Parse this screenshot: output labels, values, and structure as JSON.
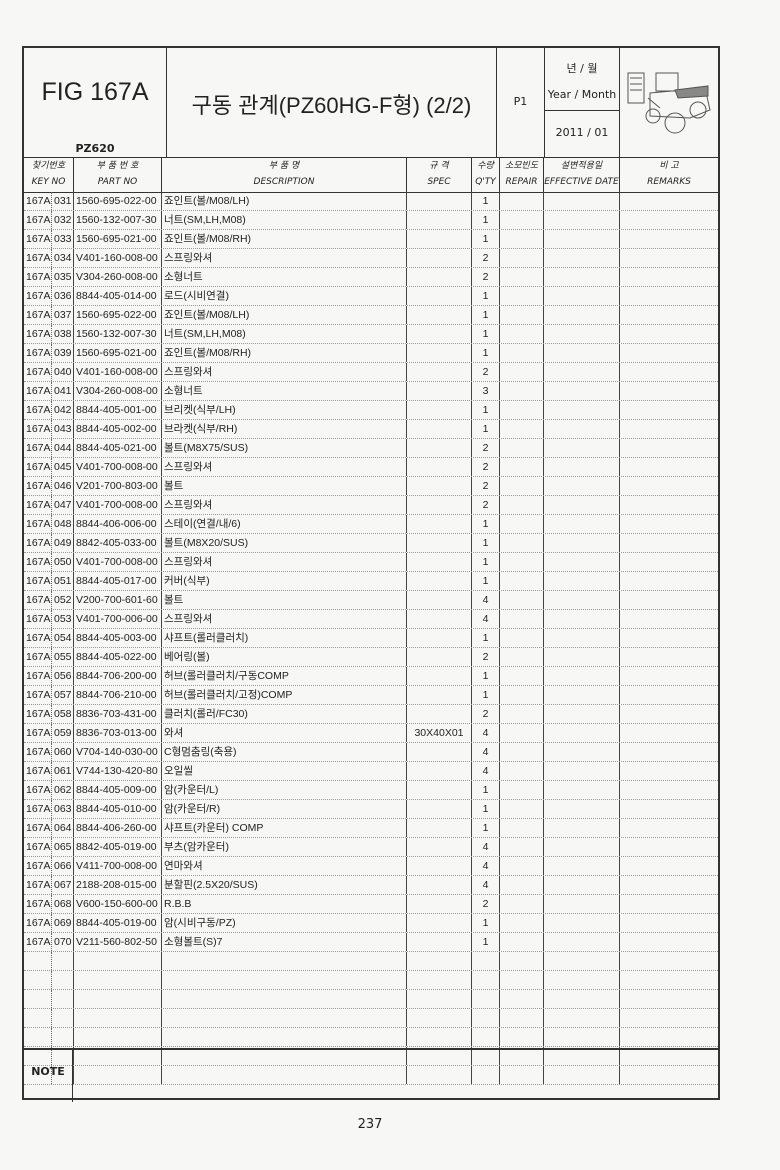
{
  "header": {
    "fig": "FIG 167A",
    "model": "PZ620",
    "title": "구동 관계(PZ60HG-F형) (2/2)",
    "page_code": "P1",
    "year_month_ko": "년 / 월",
    "year_month_en": "Year / Month",
    "date": "2011 / 01",
    "illustration": "rice-transplanter-illustration"
  },
  "columns": [
    {
      "ko": "찾기번호",
      "en": "KEY NO"
    },
    {
      "ko": "부 품 번 호",
      "en": "PART NO"
    },
    {
      "ko": "부 품 명",
      "en": "DESCRIPTION"
    },
    {
      "ko": "규 격",
      "en": "SPEC"
    },
    {
      "ko": "수량",
      "en": "Q'TY"
    },
    {
      "ko": "소모빈도",
      "en": "REPAIR"
    },
    {
      "ko": "설변적용일",
      "en": "EFFECTIVE DATE"
    },
    {
      "ko": "비 고",
      "en": "REMARKS"
    }
  ],
  "rows": [
    [
      "167A",
      "031",
      "1560-695-022-00",
      "죠인트(볼/M08/LH)",
      "",
      "1"
    ],
    [
      "167A",
      "032",
      "1560-132-007-30",
      "너트(SM,LH,M08)",
      "",
      "1"
    ],
    [
      "167A",
      "033",
      "1560-695-021-00",
      "죠인트(볼/M08/RH)",
      "",
      "1"
    ],
    [
      "167A",
      "034",
      "V401-160-008-00",
      "스프링와셔",
      "",
      "2"
    ],
    [
      "167A",
      "035",
      "V304-260-008-00",
      "소형너트",
      "",
      "2"
    ],
    [
      "167A",
      "036",
      "8844-405-014-00",
      "로드(시비연결)",
      "",
      "1"
    ],
    [
      "167A",
      "037",
      "1560-695-022-00",
      "죠인트(볼/M08/LH)",
      "",
      "1"
    ],
    [
      "167A",
      "038",
      "1560-132-007-30",
      "너트(SM,LH,M08)",
      "",
      "1"
    ],
    [
      "167A",
      "039",
      "1560-695-021-00",
      "죠인트(볼/M08/RH)",
      "",
      "1"
    ],
    [
      "167A",
      "040",
      "V401-160-008-00",
      "스프링와셔",
      "",
      "2"
    ],
    [
      "167A",
      "041",
      "V304-260-008-00",
      "소형너트",
      "",
      "3"
    ],
    [
      "167A",
      "042",
      "8844-405-001-00",
      "브리켓(식부/LH)",
      "",
      "1"
    ],
    [
      "167A",
      "043",
      "8844-405-002-00",
      "브라켓(식부/RH)",
      "",
      "1"
    ],
    [
      "167A",
      "044",
      "8844-405-021-00",
      "볼트(M8X75/SUS)",
      "",
      "2"
    ],
    [
      "167A",
      "045",
      "V401-700-008-00",
      "스프링와셔",
      "",
      "2"
    ],
    [
      "167A",
      "046",
      "V201-700-803-00",
      "볼트",
      "",
      "2"
    ],
    [
      "167A",
      "047",
      "V401-700-008-00",
      "스프링와셔",
      "",
      "2"
    ],
    [
      "167A",
      "048",
      "8844-406-006-00",
      "스테이(연결/내/6)",
      "",
      "1"
    ],
    [
      "167A",
      "049",
      "8842-405-033-00",
      "볼트(M8X20/SUS)",
      "",
      "1"
    ],
    [
      "167A",
      "050",
      "V401-700-008-00",
      "스프링와셔",
      "",
      "1"
    ],
    [
      "167A",
      "051",
      "8844-405-017-00",
      "커버(식부)",
      "",
      "1"
    ],
    [
      "167A",
      "052",
      "V200-700-601-60",
      "볼트",
      "",
      "4"
    ],
    [
      "167A",
      "053",
      "V401-700-006-00",
      "스프링와셔",
      "",
      "4"
    ],
    [
      "167A",
      "054",
      "8844-405-003-00",
      "샤프트(롤러클러치)",
      "",
      "1"
    ],
    [
      "167A",
      "055",
      "8844-405-022-00",
      "베어링(볼)",
      "",
      "2"
    ],
    [
      "167A",
      "056",
      "8844-706-200-00",
      "허브(롤러클러치/구동COMP",
      "",
      "1"
    ],
    [
      "167A",
      "057",
      "8844-706-210-00",
      "허브(롤러클러치/고정)COMP",
      "",
      "1"
    ],
    [
      "167A",
      "058",
      "8836-703-431-00",
      "클러치(롤러/FC30)",
      "",
      "2"
    ],
    [
      "167A",
      "059",
      "8836-703-013-00",
      "와셔",
      "30X40X01",
      "4"
    ],
    [
      "167A",
      "060",
      "V704-140-030-00",
      "C형멈춤링(축용)",
      "",
      "4"
    ],
    [
      "167A",
      "061",
      "V744-130-420-80",
      "오일씰",
      "",
      "4"
    ],
    [
      "167A",
      "062",
      "8844-405-009-00",
      "암(카운터/L)",
      "",
      "1"
    ],
    [
      "167A",
      "063",
      "8844-405-010-00",
      "암(카운터/R)",
      "",
      "1"
    ],
    [
      "167A",
      "064",
      "8844-406-260-00",
      "샤프트(카운터) COMP",
      "",
      "1"
    ],
    [
      "167A",
      "065",
      "8842-405-019-00",
      "부츠(암카운터)",
      "",
      "4"
    ],
    [
      "167A",
      "066",
      "V411-700-008-00",
      "연마와셔",
      "",
      "4"
    ],
    [
      "167A",
      "067",
      "2188-208-015-00",
      "분할핀(2.5X20/SUS)",
      "",
      "4"
    ],
    [
      "167A",
      "068",
      "V600-150-600-00",
      "R.B.B",
      "",
      "2"
    ],
    [
      "167A",
      "069",
      "8844-405-019-00",
      "암(시비구동/PZ)",
      "",
      "1"
    ],
    [
      "167A",
      "070",
      "V211-560-802-50",
      "소형볼트(S)7",
      "",
      "1"
    ]
  ],
  "note_label": "NOTE",
  "page_number": "237"
}
